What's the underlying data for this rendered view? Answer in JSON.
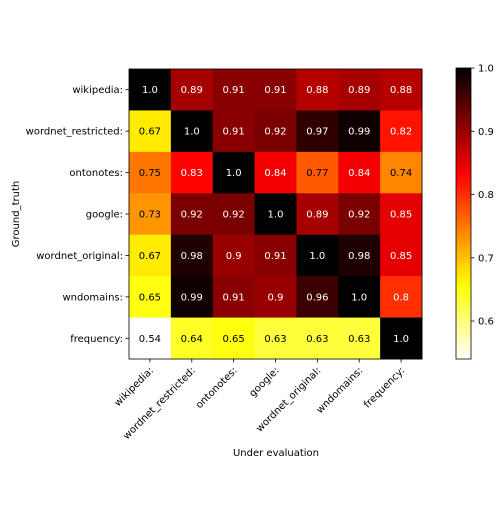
{
  "chart_data": {
    "type": "heatmap",
    "title": "",
    "xlabel": "Under evaluation",
    "ylabel": "Ground_truth",
    "rows": [
      "wikipedia:",
      "wordnet_restricted:",
      "ontonotes:",
      "google:",
      "wordnet_original:",
      "wndomains:",
      "frequency:"
    ],
    "columns": [
      "wikipedia:",
      "wordnet_restricted:",
      "ontonotes:",
      "google:",
      "wordnet_original:",
      "wndomains:",
      "frequency:"
    ],
    "values": [
      [
        "1.0",
        "0.89",
        "0.91",
        "0.91",
        "0.88",
        "0.89",
        "0.88"
      ],
      [
        "0.67",
        "1.0",
        "0.91",
        "0.92",
        "0.97",
        "0.99",
        "0.82"
      ],
      [
        "0.75",
        "0.83",
        "1.0",
        "0.84",
        "0.77",
        "0.84",
        "0.74"
      ],
      [
        "0.73",
        "0.92",
        "0.92",
        "1.0",
        "0.89",
        "0.92",
        "0.85"
      ],
      [
        "0.67",
        "0.98",
        "0.9",
        "0.91",
        "1.0",
        "0.98",
        "0.85"
      ],
      [
        "0.65",
        "0.99",
        "0.91",
        "0.9",
        "0.96",
        "1.0",
        "0.8"
      ],
      [
        "0.54",
        "0.64",
        "0.65",
        "0.63",
        "0.63",
        "0.63",
        "1.0"
      ]
    ],
    "colormap": "hot_r",
    "colorbar": {
      "range": [
        0.54,
        1.0
      ],
      "ticks": [
        "0.6",
        "0.7",
        "0.8",
        "0.9",
        "1.0"
      ]
    },
    "grid": false
  }
}
